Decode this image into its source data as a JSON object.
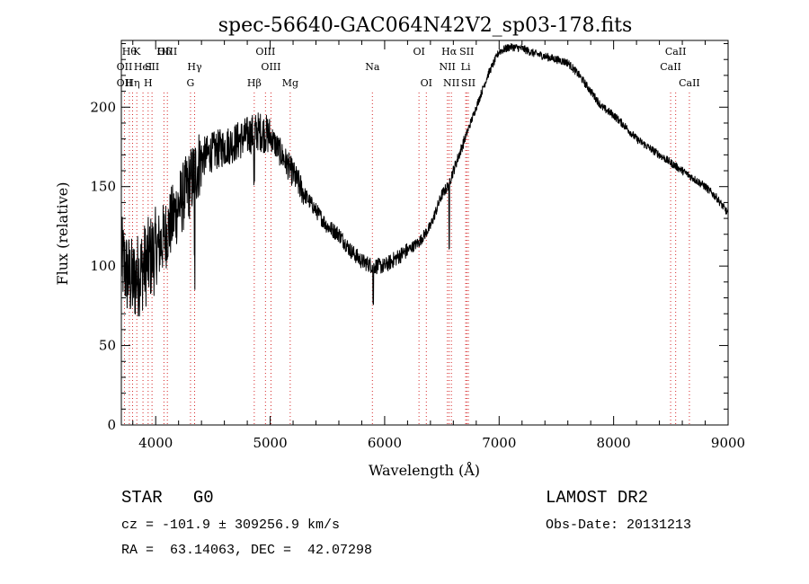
{
  "chart_data": {
    "type": "line",
    "title": "spec-56640-GAC064N42V2_sp03-178.fits",
    "xlabel": "Wavelength (Å)",
    "ylabel": "Flux (relative)",
    "xlim": [
      3700,
      9000
    ],
    "ylim": [
      0,
      242
    ],
    "xticks": [
      4000,
      5000,
      6000,
      7000,
      8000,
      9000
    ],
    "yticks": [
      0,
      50,
      100,
      150,
      200
    ],
    "grid": false,
    "series": [
      {
        "name": "spectrum",
        "anchors": [
          [
            3700,
            105
          ],
          [
            3750,
            95
          ],
          [
            3800,
            90
          ],
          [
            3850,
            95
          ],
          [
            3900,
            100
          ],
          [
            3950,
            105
          ],
          [
            4000,
            110
          ],
          [
            4050,
            115
          ],
          [
            4100,
            122
          ],
          [
            4150,
            130
          ],
          [
            4200,
            138
          ],
          [
            4250,
            145
          ],
          [
            4300,
            152
          ],
          [
            4350,
            160
          ],
          [
            4400,
            168
          ],
          [
            4500,
            172
          ],
          [
            4600,
            175
          ],
          [
            4700,
            178
          ],
          [
            4800,
            182
          ],
          [
            4900,
            185
          ],
          [
            5000,
            182
          ],
          [
            5100,
            170
          ],
          [
            5200,
            158
          ],
          [
            5300,
            145
          ],
          [
            5400,
            135
          ],
          [
            5500,
            125
          ],
          [
            5600,
            120
          ],
          [
            5700,
            110
          ],
          [
            5800,
            103
          ],
          [
            5900,
            100
          ],
          [
            6000,
            100
          ],
          [
            6100,
            105
          ],
          [
            6200,
            110
          ],
          [
            6300,
            115
          ],
          [
            6400,
            125
          ],
          [
            6500,
            145
          ],
          [
            6550,
            150
          ],
          [
            6600,
            160
          ],
          [
            6700,
            180
          ],
          [
            6800,
            200
          ],
          [
            6900,
            220
          ],
          [
            7000,
            235
          ],
          [
            7100,
            238
          ],
          [
            7200,
            237
          ],
          [
            7300,
            234
          ],
          [
            7400,
            232
          ],
          [
            7500,
            230
          ],
          [
            7600,
            228
          ],
          [
            7700,
            220
          ],
          [
            7800,
            210
          ],
          [
            7900,
            200
          ],
          [
            8000,
            195
          ],
          [
            8100,
            188
          ],
          [
            8200,
            180
          ],
          [
            8300,
            175
          ],
          [
            8400,
            170
          ],
          [
            8500,
            165
          ],
          [
            8600,
            160
          ],
          [
            8700,
            155
          ],
          [
            8800,
            150
          ],
          [
            8900,
            143
          ],
          [
            9000,
            133
          ]
        ],
        "features": [
          {
            "x": 4340,
            "depth": 60
          },
          {
            "x": 4860,
            "depth": 30
          },
          {
            "x": 5900,
            "depth": 22
          },
          {
            "x": 6563,
            "depth": 45
          }
        ]
      }
    ],
    "line_marks": [
      {
        "x": 3727,
        "label": "OII",
        "row": 2
      },
      {
        "x": 3727,
        "label": "OII",
        "row": 3
      },
      {
        "x": 3770,
        "label": "Hθ",
        "row": 1
      },
      {
        "x": 3798,
        "label": "Hη",
        "row": 3
      },
      {
        "x": 3835,
        "label": "K",
        "row": 1
      },
      {
        "x": 3889,
        "label": "HeI",
        "row": 2
      },
      {
        "x": 3934,
        "label": "H",
        "row": 3
      },
      {
        "x": 3968,
        "label": "SII",
        "row": 2
      },
      {
        "x": 4072,
        "label": "Hδ",
        "row": 1
      },
      {
        "x": 4102,
        "label": "OIII",
        "row": 1
      },
      {
        "x": 4340,
        "label": "Hγ",
        "row": 2
      },
      {
        "x": 4304,
        "label": "G",
        "row": 3
      },
      {
        "x": 4861,
        "label": "Hβ",
        "row": 3
      },
      {
        "x": 4959,
        "label": "OIII",
        "row": 1
      },
      {
        "x": 5007,
        "label": "OIII",
        "row": 2
      },
      {
        "x": 5175,
        "label": "Mg",
        "row": 3
      },
      {
        "x": 5893,
        "label": "Na",
        "row": 2
      },
      {
        "x": 6300,
        "label": "OI",
        "row": 1
      },
      {
        "x": 6364,
        "label": "OI",
        "row": 3
      },
      {
        "x": 6548,
        "label": "NII",
        "row": 2
      },
      {
        "x": 6563,
        "label": "Hα",
        "row": 1
      },
      {
        "x": 6583,
        "label": "NII",
        "row": 3
      },
      {
        "x": 6708,
        "label": "Li",
        "row": 2
      },
      {
        "x": 6717,
        "label": "SII",
        "row": 1
      },
      {
        "x": 6731,
        "label": "SII",
        "row": 3
      },
      {
        "x": 8498,
        "label": "CaII",
        "row": 2
      },
      {
        "x": 8542,
        "label": "CaII",
        "row": 1
      },
      {
        "x": 8662,
        "label": "CaII",
        "row": 3
      }
    ]
  },
  "info": {
    "classification": "STAR   G0",
    "survey": "LAMOST DR2",
    "cz": "cz = -101.9 ± 309256.9 km/s",
    "obs_date": "Obs-Date: 20131213",
    "coords": "RA =  63.14063, DEC =  42.07298"
  }
}
